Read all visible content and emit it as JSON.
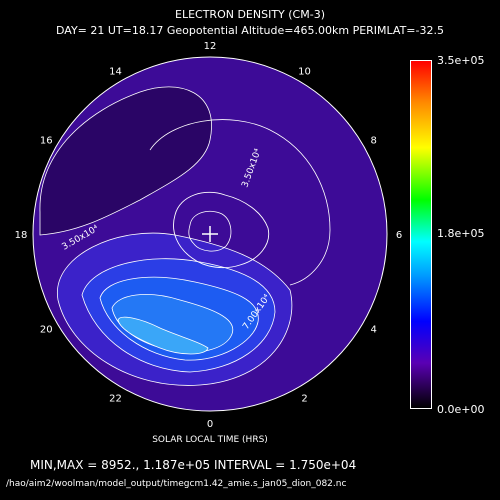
{
  "chart_data": {
    "type": "heatmap",
    "projection": "polar",
    "title": "ELECTRON DENSITY (CM-3)",
    "subtitle": "DAY= 21 UT=18.17 Geopotential Altitude=465.00km PERIMLAT=-32.5",
    "xlabel": "SOLAR LOCAL TIME (HRS)",
    "hour_labels": [
      "0",
      "2",
      "4",
      "6",
      "8",
      "10",
      "12",
      "14",
      "16",
      "18",
      "20",
      "22"
    ],
    "colorbar": {
      "labels": [
        "3.5e+05",
        "1.8e+05",
        "0.0e+00"
      ],
      "range": [
        0,
        350000
      ],
      "colors": [
        "#000000",
        "#5a00b4",
        "#0000ff",
        "#0099ff",
        "#00ffff",
        "#00ff00",
        "#ffff00",
        "#ff8a00",
        "#ff0000"
      ]
    },
    "contour_labels": [
      "3.50x10⁴",
      "3.50x10⁴",
      "7.00x10⁴"
    ],
    "stats": "MIN,MAX =       8952., 1.187e+05 INTERVAL =  1.750e+04",
    "min": 8952,
    "max": 118700,
    "interval": 17500,
    "file_path": "/hao/aim2/woolman/model_output/timegcm1.42_amie.s_jan05_dion_082.nc",
    "pole_marker": "+",
    "colors": {
      "background": "#000000",
      "disk": "#3d0b97",
      "text": "#ffffff"
    }
  }
}
